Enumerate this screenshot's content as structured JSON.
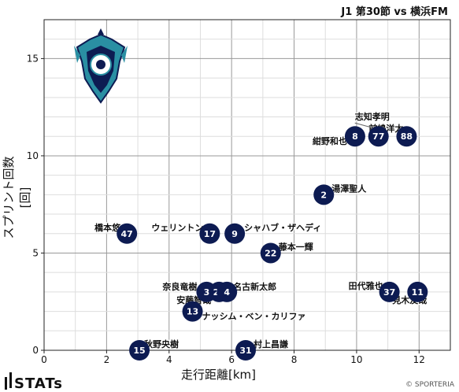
{
  "header": {
    "title": "J1 第30節 vs 横浜FM"
  },
  "footer": {
    "brand": "STATs",
    "copyright": "© SPORTERIA"
  },
  "colors": {
    "marker": "#0d1b52",
    "marker_text": "#ffffff",
    "grid_major": "#999999",
    "grid_minor": "#dddddd"
  },
  "chart_data": {
    "type": "scatter",
    "title": "J1 第30節 vs 横浜FM",
    "xlabel": "走行距離[km]",
    "ylabel": "スプリント回数[回]",
    "xlim": [
      0,
      13
    ],
    "ylim": [
      0,
      17
    ],
    "xticks": [
      0,
      2,
      4,
      6,
      8,
      10,
      12
    ],
    "yticks": [
      0,
      5,
      10,
      15
    ],
    "grid": true,
    "points": [
      {
        "number": "47",
        "name": "橋本悠",
        "x": 2.65,
        "y": 6
      },
      {
        "number": "17",
        "name": "ウェリントン",
        "x": 5.3,
        "y": 6
      },
      {
        "number": "9",
        "name": "シャハブ・ザヘディ",
        "x": 6.1,
        "y": 6
      },
      {
        "number": "22",
        "name": "藤本一輝",
        "x": 7.25,
        "y": 5
      },
      {
        "number": "2",
        "name": "湯澤聖人",
        "x": 8.95,
        "y": 8
      },
      {
        "number": "8",
        "name": "紺野和也",
        "x": 9.95,
        "y": 11
      },
      {
        "number": "77",
        "name": "志知孝明",
        "x": 10.7,
        "y": 11
      },
      {
        "number": "88",
        "name": "前嶋洋太",
        "x": 11.6,
        "y": 11
      },
      {
        "number": "37",
        "name": "田代雅也",
        "x": 11.05,
        "y": 3
      },
      {
        "number": "11",
        "name": "見木友哉",
        "x": 11.95,
        "y": 3
      },
      {
        "number": "3",
        "name": "奈良竜樹",
        "x": 5.2,
        "y": 3
      },
      {
        "number": "20",
        "name": "安藤智哉",
        "x": 5.6,
        "y": 3
      },
      {
        "number": "4",
        "name": "名古新太郎",
        "x": 5.85,
        "y": 3
      },
      {
        "number": "13",
        "name": "ナッシム・ベン・カリファ",
        "x": 4.75,
        "y": 2
      },
      {
        "number": "15",
        "name": "秋野央樹",
        "x": 3.05,
        "y": 0
      },
      {
        "number": "31",
        "name": "村上昌謙",
        "x": 6.45,
        "y": 0
      }
    ]
  }
}
